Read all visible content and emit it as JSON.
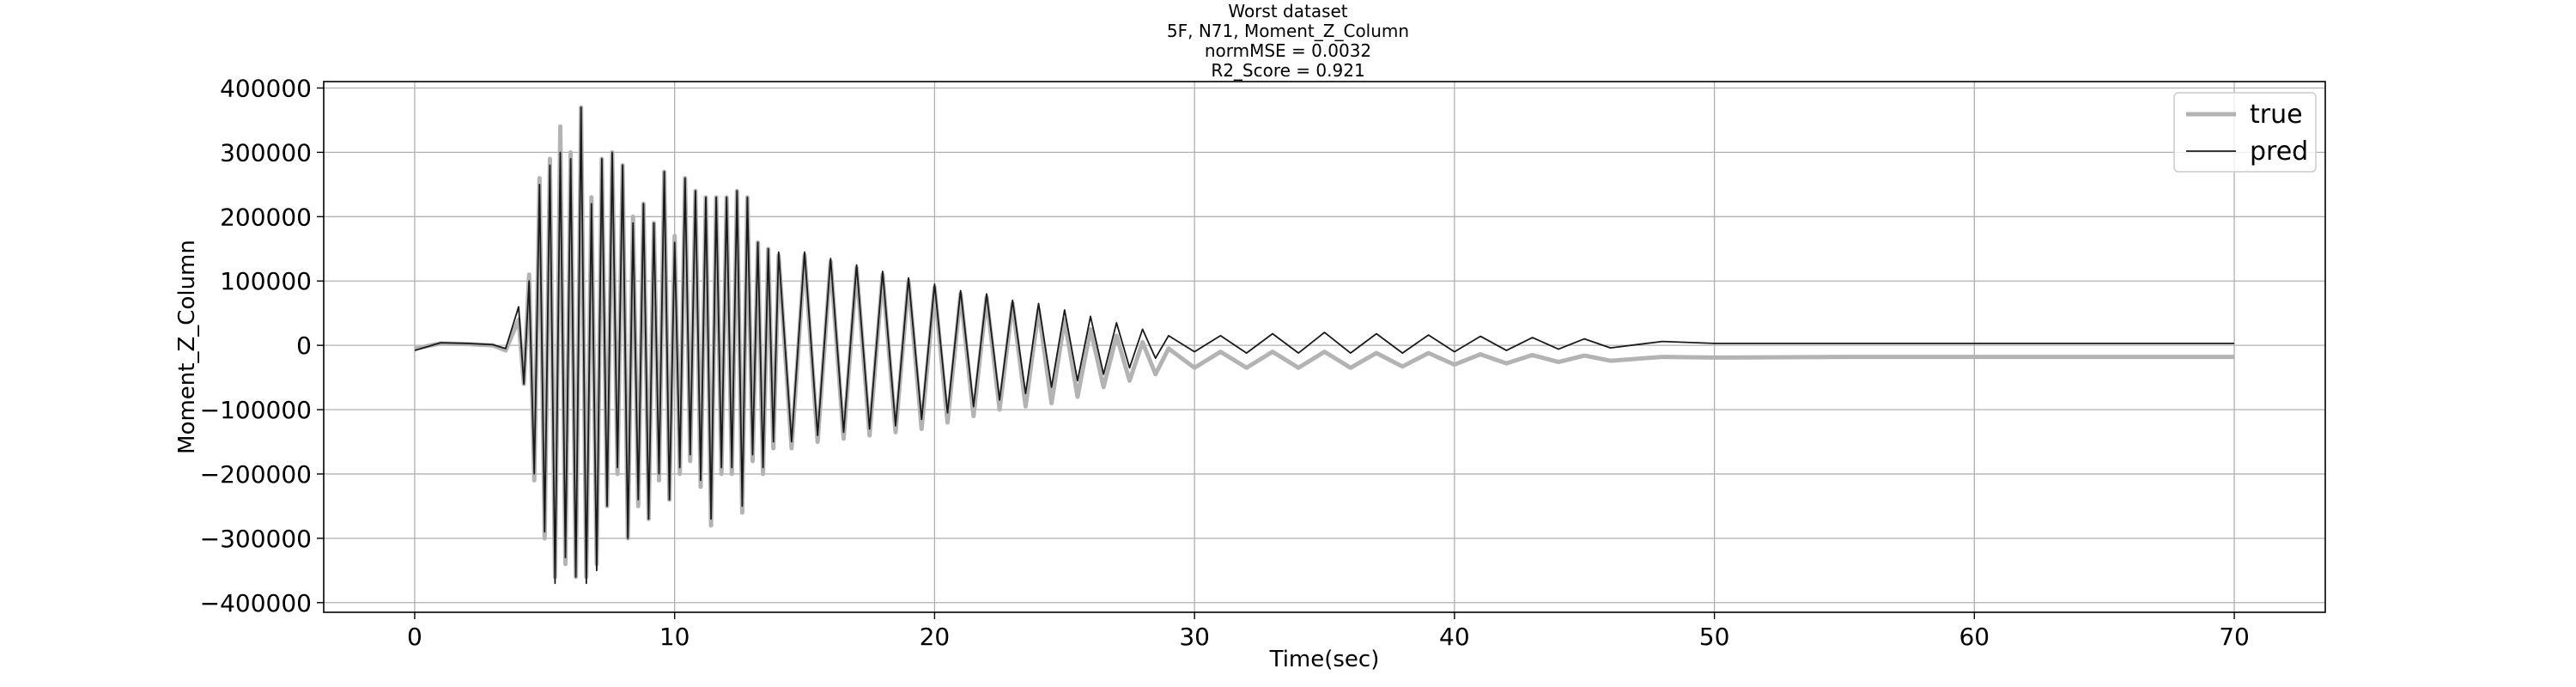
{
  "chart_data": {
    "type": "line",
    "title_lines": [
      "Worst dataset",
      "5F, N71, Moment_Z_Column",
      "normMSE = 0.0032",
      "R2_Score = 0.921"
    ],
    "xlabel": "Time(sec)",
    "ylabel": "Moment_Z_Column",
    "xlim": [
      -3.5,
      73.5
    ],
    "ylim": [
      -415000,
      410000
    ],
    "xticks": [
      0,
      10,
      20,
      30,
      40,
      50,
      60,
      70
    ],
    "xtick_labels": [
      "0",
      "10",
      "20",
      "30",
      "40",
      "50",
      "60",
      "70"
    ],
    "yticks": [
      -400000,
      -300000,
      -200000,
      -100000,
      0,
      100000,
      200000,
      300000,
      400000
    ],
    "ytick_labels": [
      "−400000",
      "−300000",
      "−200000",
      "−100000",
      "0",
      "100000",
      "200000",
      "300000",
      "400000"
    ],
    "grid": true,
    "legend_position": "top-right",
    "series": [
      {
        "name": "true",
        "color": "#b3b3b3",
        "x": [
          0.0,
          1.0,
          2.0,
          3.0,
          3.5,
          4.0,
          4.2,
          4.4,
          4.6,
          4.8,
          5.0,
          5.2,
          5.4,
          5.6,
          5.8,
          6.0,
          6.2,
          6.4,
          6.6,
          6.8,
          7.0,
          7.2,
          7.4,
          7.6,
          7.8,
          8.0,
          8.2,
          8.4,
          8.6,
          8.8,
          9.0,
          9.2,
          9.4,
          9.6,
          9.8,
          10.0,
          10.2,
          10.4,
          10.6,
          10.8,
          11.0,
          11.2,
          11.4,
          11.6,
          11.8,
          12.0,
          12.2,
          12.4,
          12.6,
          12.8,
          13.0,
          13.2,
          13.4,
          13.6,
          13.8,
          14.0,
          14.5,
          15.0,
          15.5,
          16.0,
          16.5,
          17.0,
          17.5,
          18.0,
          18.5,
          19.0,
          19.5,
          20.0,
          20.5,
          21.0,
          21.5,
          22.0,
          22.5,
          23.0,
          23.5,
          24.0,
          24.5,
          25.0,
          25.5,
          26.0,
          26.5,
          27.0,
          27.5,
          28.0,
          28.5,
          29.0,
          30.0,
          31.0,
          32.0,
          33.0,
          34.0,
          35.0,
          36.0,
          37.0,
          38.0,
          39.0,
          40.0,
          41.0,
          42.0,
          43.0,
          44.0,
          45.0,
          46.0,
          48.0,
          50.0,
          55.0,
          60.0,
          65.0,
          70.0
        ],
        "y": [
          -5000,
          3000,
          2000,
          0,
          -8000,
          40000,
          -60000,
          110000,
          -210000,
          260000,
          -300000,
          290000,
          -360000,
          340000,
          -340000,
          300000,
          -360000,
          370000,
          -360000,
          230000,
          -340000,
          290000,
          -250000,
          300000,
          -200000,
          280000,
          -300000,
          200000,
          -250000,
          220000,
          -270000,
          190000,
          -210000,
          270000,
          -240000,
          170000,
          -200000,
          260000,
          -180000,
          240000,
          -220000,
          230000,
          -280000,
          230000,
          -200000,
          230000,
          -200000,
          240000,
          -260000,
          230000,
          -180000,
          160000,
          -200000,
          150000,
          -160000,
          140000,
          -160000,
          140000,
          -150000,
          130000,
          -145000,
          120000,
          -140000,
          110000,
          -135000,
          100000,
          -130000,
          90000,
          -120000,
          80000,
          -110000,
          75000,
          -100000,
          65000,
          -95000,
          55000,
          -90000,
          40000,
          -80000,
          25000,
          -65000,
          15000,
          -55000,
          5000,
          -45000,
          -5000,
          -35000,
          -10000,
          -35000,
          -10000,
          -35000,
          -10000,
          -35000,
          -12000,
          -33000,
          -12000,
          -30000,
          -14000,
          -28000,
          -15000,
          -26000,
          -16000,
          -24000,
          -18000,
          -19000,
          -18000,
          -18000,
          -18000,
          -18000
        ]
      },
      {
        "name": "pred",
        "color": "#1a1a1a",
        "x": [
          0.0,
          1.0,
          2.0,
          3.0,
          3.5,
          4.0,
          4.2,
          4.4,
          4.6,
          4.8,
          5.0,
          5.2,
          5.4,
          5.6,
          5.8,
          6.0,
          6.2,
          6.4,
          6.6,
          6.8,
          7.0,
          7.2,
          7.4,
          7.6,
          7.8,
          8.0,
          8.2,
          8.4,
          8.6,
          8.8,
          9.0,
          9.2,
          9.4,
          9.6,
          9.8,
          10.0,
          10.2,
          10.4,
          10.6,
          10.8,
          11.0,
          11.2,
          11.4,
          11.6,
          11.8,
          12.0,
          12.2,
          12.4,
          12.6,
          12.8,
          13.0,
          13.2,
          13.4,
          13.6,
          13.8,
          14.0,
          14.5,
          15.0,
          15.5,
          16.0,
          16.5,
          17.0,
          17.5,
          18.0,
          18.5,
          19.0,
          19.5,
          20.0,
          20.5,
          21.0,
          21.5,
          22.0,
          22.5,
          23.0,
          23.5,
          24.0,
          24.5,
          25.0,
          25.5,
          26.0,
          26.5,
          27.0,
          27.5,
          28.0,
          28.5,
          29.0,
          30.0,
          31.0,
          32.0,
          33.0,
          34.0,
          35.0,
          36.0,
          37.0,
          38.0,
          39.0,
          40.0,
          41.0,
          42.0,
          43.0,
          44.0,
          45.0,
          46.0,
          48.0,
          50.0,
          55.0,
          60.0,
          65.0,
          70.0
        ],
        "y": [
          -8000,
          4000,
          3000,
          1000,
          -5000,
          60000,
          -60000,
          100000,
          -200000,
          250000,
          -290000,
          280000,
          -370000,
          300000,
          -330000,
          290000,
          -360000,
          370000,
          -370000,
          220000,
          -350000,
          290000,
          -250000,
          300000,
          -190000,
          280000,
          -300000,
          190000,
          -240000,
          220000,
          -270000,
          190000,
          -200000,
          270000,
          -240000,
          160000,
          -190000,
          260000,
          -170000,
          240000,
          -210000,
          230000,
          -270000,
          230000,
          -190000,
          230000,
          -190000,
          240000,
          -250000,
          230000,
          -170000,
          160000,
          -190000,
          150000,
          -150000,
          145000,
          -150000,
          145000,
          -140000,
          135000,
          -135000,
          125000,
          -130000,
          115000,
          -125000,
          105000,
          -115000,
          95000,
          -105000,
          85000,
          -95000,
          80000,
          -85000,
          70000,
          -75000,
          65000,
          -65000,
          55000,
          -55000,
          45000,
          -45000,
          35000,
          -35000,
          25000,
          -20000,
          15000,
          -10000,
          15000,
          -12000,
          18000,
          -12000,
          20000,
          -12000,
          18000,
          -12000,
          16000,
          -10000,
          14000,
          -8000,
          12000,
          -6000,
          10000,
          -4000,
          6000,
          3000,
          3000,
          3000,
          3000,
          3000
        ]
      }
    ]
  }
}
